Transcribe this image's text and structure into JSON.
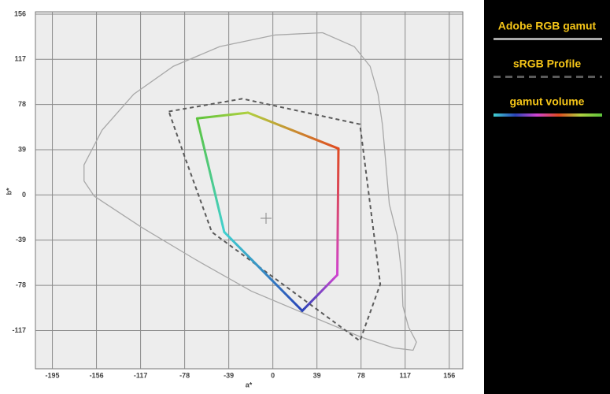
{
  "chart_data": {
    "type": "line",
    "x_label": "a*",
    "y_label": "b*",
    "xlim": [
      -210,
      168
    ],
    "ylim": [
      -150,
      158
    ],
    "xticks": [
      -195,
      -156,
      -117,
      -78,
      -39,
      0,
      39,
      78,
      117,
      156
    ],
    "yticks": [
      -117,
      -78,
      -39,
      0,
      39,
      78,
      117,
      156
    ],
    "grid": true,
    "legend": "right",
    "closed": true,
    "series": [
      {
        "name": "Adobe RGB gamut",
        "color": "#a8a8a8",
        "dash": "solid",
        "x": [
          -167,
          -151,
          -123,
          -88,
          -47,
          2,
          44,
          72,
          86,
          93,
          97,
          100,
          103,
          110,
          114,
          115,
          120,
          127,
          124,
          107,
          79,
          37,
          -19,
          -68,
          -116,
          -158,
          -167
        ],
        "values": [
          26,
          56,
          87,
          111,
          128,
          138,
          140,
          128,
          111,
          87,
          60,
          26,
          -8,
          -35,
          -69,
          -96,
          -114,
          -127,
          -134,
          -132,
          -123,
          -106,
          -83,
          -56,
          -28,
          -1,
          12
        ]
      },
      {
        "name": "sRGB Profile",
        "color": "#5a5a5a",
        "dash": "dashed",
        "x": [
          -92,
          -27,
          77,
          95,
          77,
          -54,
          -78
        ],
        "values": [
          72,
          83,
          61,
          -77,
          -126,
          -32,
          33
        ]
      },
      {
        "name": "gamut volume",
        "colors": [
          "#5cc43c",
          "#b0d040",
          "#e04a20",
          "#d044d0",
          "#2a44b8",
          "#40d0d0"
        ],
        "dash": "gradient",
        "x": [
          -67,
          -22,
          58,
          57,
          26,
          -43
        ],
        "values": [
          66,
          71,
          40,
          -69,
          -100,
          -32
        ]
      }
    ]
  }
}
